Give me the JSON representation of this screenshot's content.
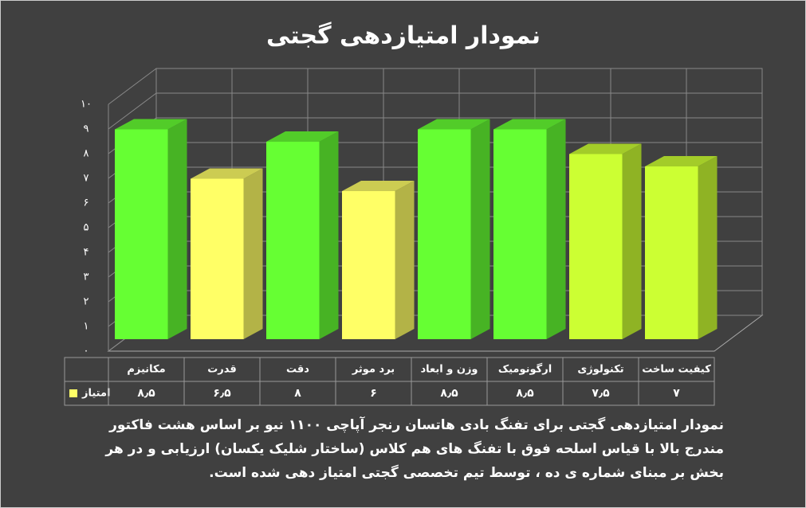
{
  "chart_data": {
    "type": "bar3d",
    "title": "نمودار امتیازدهی گجتی",
    "categories": [
      "مکانیزم",
      "قدرت",
      "دقت",
      "برد موثر",
      "وزن و ابعاد",
      "ارگونومیک",
      "تکنولوژی",
      "کیفیت ساخت"
    ],
    "series": [
      {
        "name": "امتیاز",
        "color": "#ffff66",
        "values": [
          8.5,
          6.5,
          8,
          6,
          8.5,
          8.5,
          7.5,
          7
        ],
        "value_labels": [
          "۸٫۵",
          "۶٫۵",
          "۸",
          "۶",
          "۸٫۵",
          "۸٫۵",
          "۷٫۵",
          "۷"
        ],
        "colors": [
          "#66ff33",
          "#ffff66",
          "#66ff33",
          "#ffff66",
          "#66ff33",
          "#66ff33",
          "#ccff33",
          "#ccff33"
        ]
      }
    ],
    "ylim": [
      0,
      10
    ],
    "yticks": [
      {
        "value": 0,
        "label": "۰"
      },
      {
        "value": 1,
        "label": "۱"
      },
      {
        "value": 2,
        "label": "۲"
      },
      {
        "value": 3,
        "label": "۳"
      },
      {
        "value": 4,
        "label": "۴"
      },
      {
        "value": 5,
        "label": "۵"
      },
      {
        "value": 6,
        "label": "۶"
      },
      {
        "value": 7,
        "label": "۷"
      },
      {
        "value": 8,
        "label": "۸"
      },
      {
        "value": 9,
        "label": "۹"
      },
      {
        "value": 10,
        "label": "۱۰"
      }
    ],
    "grid": true,
    "note": "نمودار امتیازدهی گجتی برای تفنگ بادی هاتسان رنجر آپاچی ۱۱۰۰ نیو بر اساس هشت فاکتور مندرج بالا با قیاس اسلحه فوق با تفنگ های هم کلاس (ساختار شلیک یکسان) ارزیابی و در هر بخش بر مبنای شماره ی ده ، توسط تیم تخصصی گجتی امتیاز دهی شده است."
  }
}
